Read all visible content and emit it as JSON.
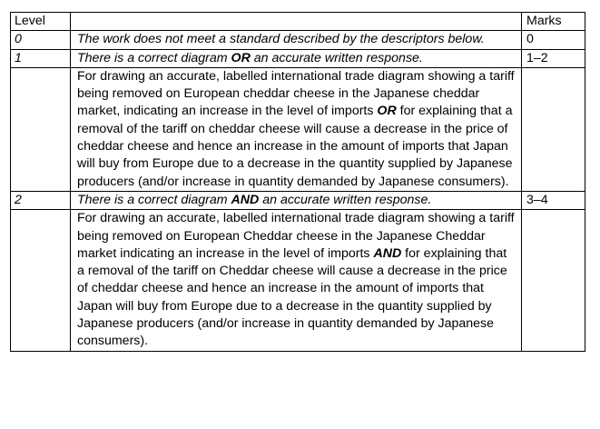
{
  "table": {
    "headers": {
      "level": "Level",
      "description": "",
      "marks": "Marks"
    },
    "rows": [
      {
        "level": "0",
        "summary": "The work does not meet a standard described by the descriptors below.",
        "marks": "0"
      },
      {
        "level": "1",
        "summary_pre": "There is a correct diagram ",
        "summary_emph": "OR",
        "summary_post": " an accurate written response.",
        "marks": "1–2",
        "detail_pre": "For drawing an accurate, labelled international trade diagram showing a tariff being removed on European cheddar cheese in the Japanese cheddar market, indicating an increase in the level of imports ",
        "detail_emph": "OR",
        "detail_post": " for explaining that a removal of the tariff on cheddar cheese will cause a decrease in the price of cheddar cheese and hence an increase in the amount of imports that Japan will buy from Europe due to a decrease in the quantity supplied by Japanese producers (and/or increase in quantity demanded by Japanese consumers)."
      },
      {
        "level": "2",
        "summary_pre": "There is a correct diagram ",
        "summary_emph": "AND",
        "summary_post": " an accurate written response.",
        "marks": "3–4",
        "detail_pre": "For drawing an accurate, labelled international trade diagram showing a tariff being removed on European Cheddar cheese in the Japanese Cheddar market indicating an increase in the level of imports ",
        "detail_emph": "AND",
        "detail_post": " for explaining that a removal of the tariff on Cheddar cheese will cause a decrease in the price of cheddar cheese and hence an increase in the amount of imports that Japan will buy from Europe due to a decrease in the quantity supplied by Japanese producers (and/or increase in quantity demanded by Japanese consumers)."
      }
    ]
  }
}
